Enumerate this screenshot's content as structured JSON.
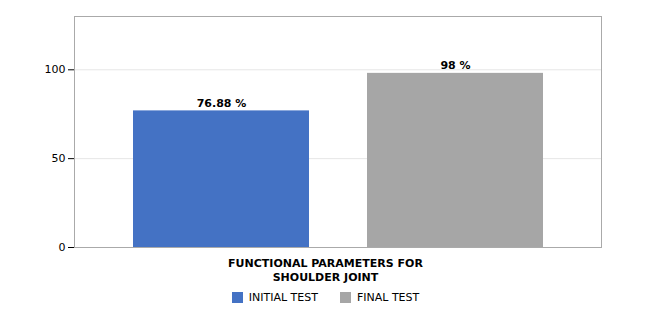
{
  "chart_data": {
    "type": "bar",
    "categories": [
      null
    ],
    "series": [
      {
        "name": "INITIAL TEST",
        "color": "#4472c4",
        "values": [
          76.88
        ],
        "value_labels": [
          "76.88 %"
        ]
      },
      {
        "name": "FINAL TEST",
        "color": "#a6a6a6",
        "values": [
          98.0
        ],
        "value_labels": [
          "98 %"
        ]
      }
    ],
    "xlabel": "FUNCTIONAL PARAMETERS FOR\nSHOULDER JOINT",
    "ylim": [
      0,
      130
    ],
    "yticks": [
      0,
      50,
      100
    ],
    "grid": true,
    "legend": "bottom",
    "data_labels": true,
    "tick_labels": "y"
  }
}
